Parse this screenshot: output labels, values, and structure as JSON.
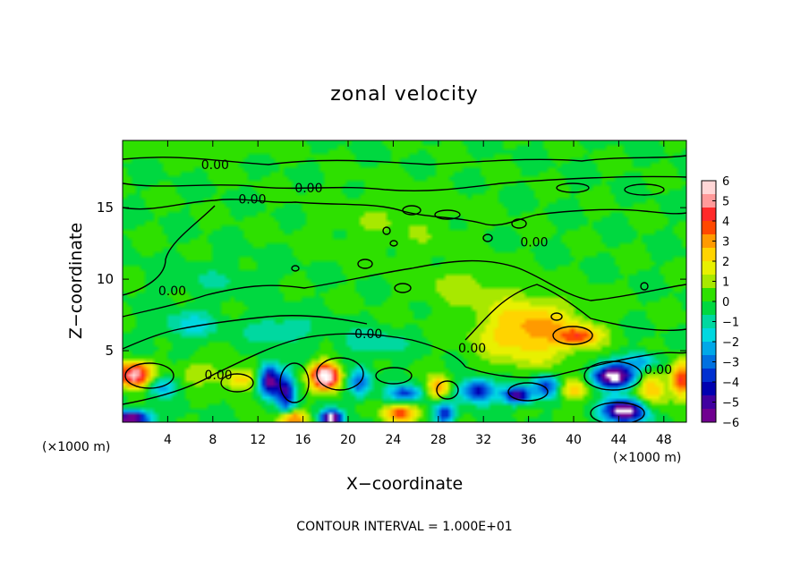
{
  "chart_data": {
    "type": "heatmap",
    "title": "zonal velocity",
    "xlabel": "X−coordinate",
    "ylabel": "Z−coordinate",
    "x_unit_left": "(×1000 m)",
    "x_unit_right": "(×1000 m)",
    "footer": "CONTOUR INTERVAL = 1.000E+01",
    "xlim": [
      0,
      50
    ],
    "ylim": [
      0,
      19.7
    ],
    "x_ticks": [
      4,
      8,
      12,
      16,
      20,
      24,
      28,
      32,
      36,
      40,
      44,
      48
    ],
    "y_ticks": [
      5,
      10,
      15
    ],
    "colorbar": {
      "ticks": [
        6,
        5,
        4,
        3,
        2,
        1,
        0,
        -1,
        -2,
        -3,
        -4,
        -5,
        -6
      ],
      "range": [
        -6,
        6
      ],
      "colors": [
        "#ffd6d6",
        "#ff9a9a",
        "#ff2a2a",
        "#ff4800",
        "#ff9a00",
        "#ffd400",
        "#e8f000",
        "#a8e800",
        "#2ee000",
        "#00d840",
        "#00d8a0",
        "#00d8e0",
        "#00a8e8",
        "#0070e0",
        "#0030d0",
        "#0000b0",
        "#4000a0",
        "#700090"
      ]
    },
    "contour_labels": [
      {
        "text": "0.00",
        "x": 8.2,
        "z": 18.0
      },
      {
        "text": "0.00",
        "x": 16.5,
        "z": 16.4
      },
      {
        "text": "0.00",
        "x": 11.5,
        "z": 15.6
      },
      {
        "text": "0.00",
        "x": 36.5,
        "z": 12.6
      },
      {
        "text": "0.00",
        "x": 4.4,
        "z": 9.2
      },
      {
        "text": "0.00",
        "x": 21.8,
        "z": 6.2
      },
      {
        "text": "0.00",
        "x": 31.0,
        "z": 5.2
      },
      {
        "text": "0.00",
        "x": 8.5,
        "z": 3.3
      },
      {
        "text": "0.00",
        "x": 47.5,
        "z": 3.7
      }
    ],
    "field_anomalies": [
      {
        "x": 1.0,
        "z": 3.3,
        "sx": 1.5,
        "sz": 0.9,
        "a": 5.6
      },
      {
        "x": 0.8,
        "z": 0.3,
        "sx": 1.6,
        "sz": 0.5,
        "a": -6.8
      },
      {
        "x": 3.5,
        "z": 2.5,
        "sx": 1.3,
        "sz": 0.7,
        "a": -2.4
      },
      {
        "x": 6.5,
        "z": 3.5,
        "sx": 1.8,
        "sz": 0.8,
        "a": 1.4
      },
      {
        "x": 10.5,
        "z": 3.0,
        "sx": 1.6,
        "sz": 0.8,
        "a": 2.5
      },
      {
        "x": 13.0,
        "z": 2.9,
        "sx": 1.0,
        "sz": 1.1,
        "a": -5.8
      },
      {
        "x": 14.5,
        "z": 2.0,
        "sx": 0.8,
        "sz": 1.4,
        "a": -4.2
      },
      {
        "x": 18.0,
        "z": 3.2,
        "sx": 1.3,
        "sz": 0.9,
        "a": 6.8
      },
      {
        "x": 21.0,
        "z": 2.7,
        "sx": 1.0,
        "sz": 0.9,
        "a": -3.5
      },
      {
        "x": 15.0,
        "z": 0.3,
        "sx": 1.2,
        "sz": 0.5,
        "a": 3.6
      },
      {
        "x": 18.5,
        "z": 0.3,
        "sx": 1.0,
        "sz": 0.5,
        "a": -6.8
      },
      {
        "x": 25.0,
        "z": 2.0,
        "sx": 1.6,
        "sz": 0.6,
        "a": -3.4
      },
      {
        "x": 24.5,
        "z": 0.6,
        "sx": 1.5,
        "sz": 0.6,
        "a": 3.9
      },
      {
        "x": 28.0,
        "z": 2.4,
        "sx": 1.0,
        "sz": 0.8,
        "a": 3.3
      },
      {
        "x": 28.5,
        "z": 0.6,
        "sx": 0.9,
        "sz": 0.8,
        "a": -3.8
      },
      {
        "x": 31.5,
        "z": 2.2,
        "sx": 1.6,
        "sz": 0.8,
        "a": -4.6
      },
      {
        "x": 35.0,
        "z": 1.9,
        "sx": 1.2,
        "sz": 0.6,
        "a": -5.6
      },
      {
        "x": 37.5,
        "z": 2.5,
        "sx": 1.2,
        "sz": 0.8,
        "a": -3.6
      },
      {
        "x": 36.0,
        "z": 6.4,
        "sx": 4.5,
        "sz": 2.2,
        "a": 3.0
      },
      {
        "x": 40.5,
        "z": 6.0,
        "sx": 1.8,
        "sz": 0.7,
        "a": 3.0
      },
      {
        "x": 40.0,
        "z": 2.3,
        "sx": 1.3,
        "sz": 0.7,
        "a": 2.6
      },
      {
        "x": 43.5,
        "z": 3.2,
        "sx": 1.8,
        "sz": 0.8,
        "a": -7.2
      },
      {
        "x": 44.5,
        "z": 0.8,
        "sx": 1.8,
        "sz": 0.8,
        "a": -7.0
      },
      {
        "x": 47.0,
        "z": 2.3,
        "sx": 1.3,
        "sz": 1.2,
        "a": 2.6
      },
      {
        "x": 49.5,
        "z": 3.0,
        "sx": 0.9,
        "sz": 1.2,
        "a": 4.2
      },
      {
        "x": 46.0,
        "z": 4.3,
        "sx": 1.6,
        "sz": 0.6,
        "a": -2.5
      },
      {
        "x": 6.0,
        "z": 6.8,
        "sx": 2.5,
        "sz": 1.0,
        "a": -1.6
      },
      {
        "x": 14.0,
        "z": 6.5,
        "sx": 3.0,
        "sz": 1.0,
        "a": -1.3
      },
      {
        "x": 22.0,
        "z": 5.5,
        "sx": 3.0,
        "sz": 1.0,
        "a": -1.2
      },
      {
        "x": 8.0,
        "z": 10.0,
        "sx": 5.0,
        "sz": 1.2,
        "a": -0.6
      },
      {
        "x": 24.0,
        "z": 14.0,
        "sx": 6.0,
        "sz": 2.5,
        "a": 0.6
      },
      {
        "x": 8.0,
        "z": 19.2,
        "sx": 5.0,
        "sz": 0.7,
        "a": 0.5
      },
      {
        "x": 30.0,
        "z": 9.5,
        "sx": 4.0,
        "sz": 1.5,
        "a": 0.9
      }
    ]
  }
}
